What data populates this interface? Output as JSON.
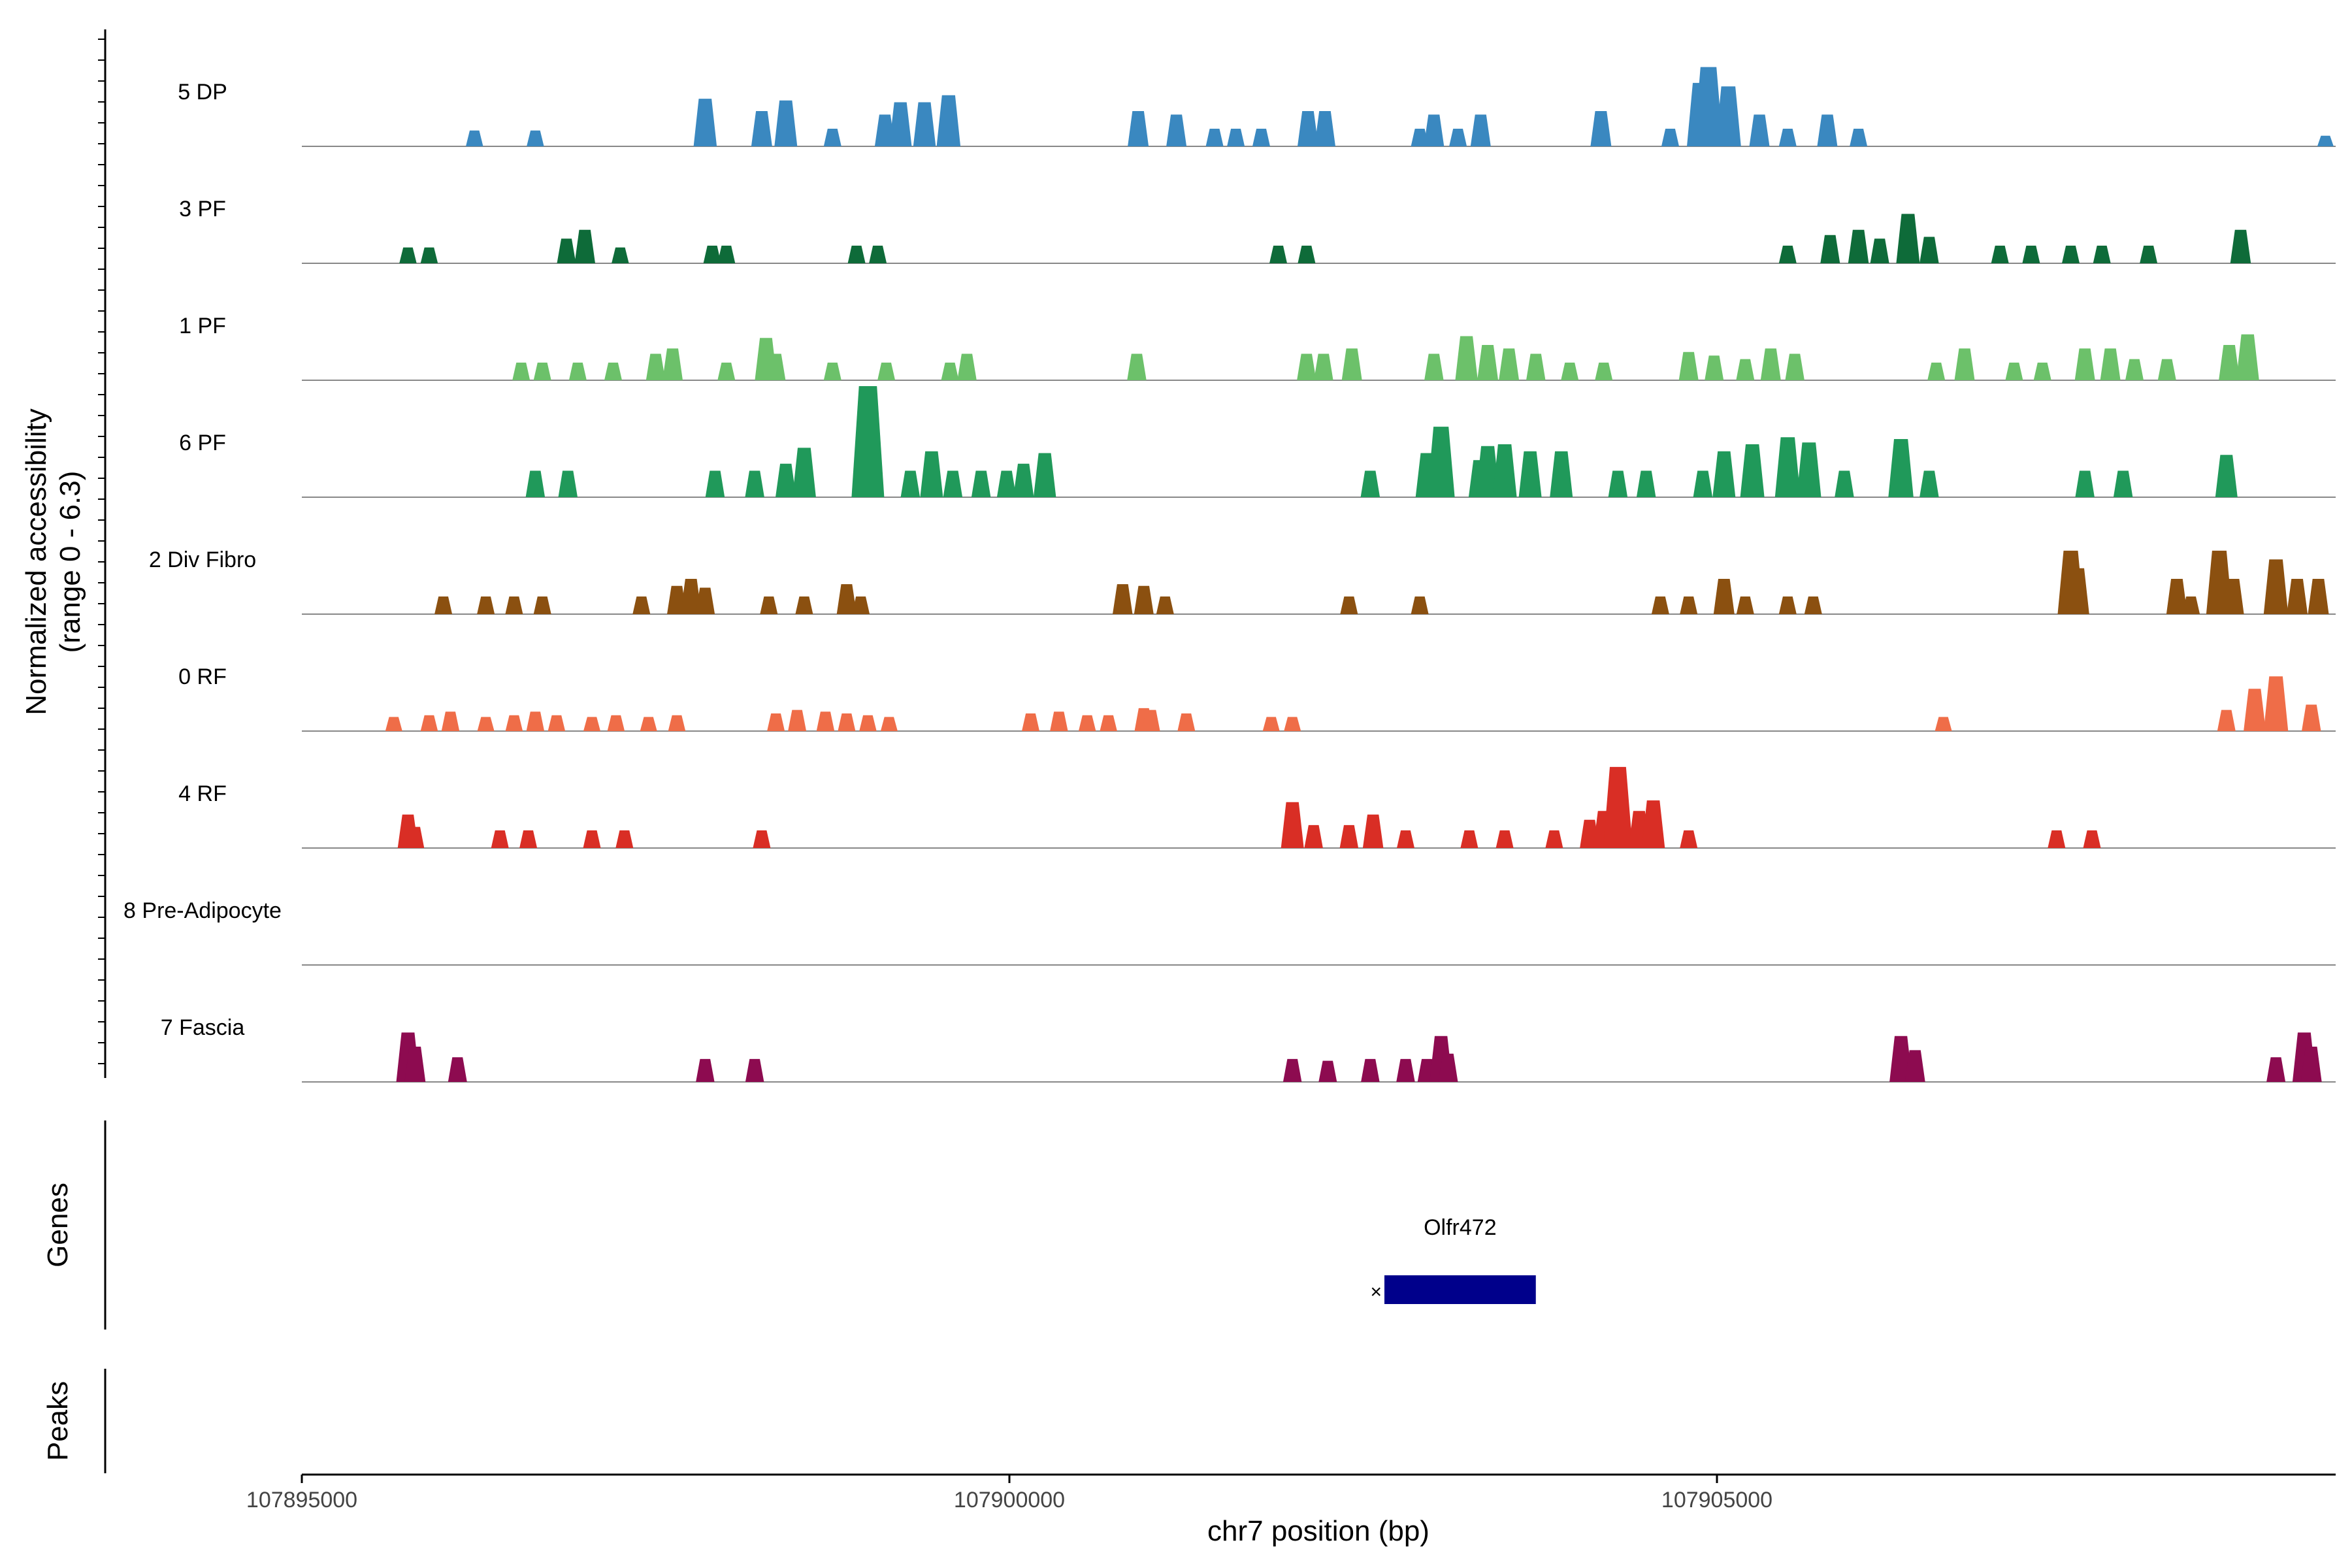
{
  "chart_data": {
    "type": "area",
    "title": "",
    "xlabel": "chr7 position (bp)",
    "ylabel_line1": "Normalized accessibility",
    "ylabel_line2": "(range 0 - 6.3)",
    "y_range": [
      0,
      6.3
    ],
    "x_range": [
      107895000,
      107909400
    ],
    "x_ticks": [
      107895000,
      107900000,
      107905000
    ],
    "x_tick_labels": [
      "107895000",
      "107900000",
      "107905000"
    ],
    "panel_labels": {
      "genes": "Genes",
      "peaks": "Peaks"
    },
    "genes": [
      {
        "name": "Olfr472",
        "start": 107902650,
        "end": 107903720,
        "strand": "-",
        "color": "#00008b"
      }
    ],
    "series": [
      {
        "name": "5 DP",
        "color": "#3a88c0",
        "peaks": [
          [
            107896220,
            0.9
          ],
          [
            107896650,
            0.9
          ],
          [
            107897850,
            2.7
          ],
          [
            107898250,
            2.0
          ],
          [
            107898420,
            2.6
          ],
          [
            107898750,
            1.0
          ],
          [
            107899120,
            1.8
          ],
          [
            107899230,
            2.5
          ],
          [
            107899400,
            2.5
          ],
          [
            107899570,
            2.9
          ],
          [
            107900910,
            2.0
          ],
          [
            107901180,
            1.8
          ],
          [
            107901450,
            1.0
          ],
          [
            107901600,
            1.0
          ],
          [
            107901780,
            1.0
          ],
          [
            107902110,
            2.0
          ],
          [
            107902230,
            2.0
          ],
          [
            107902900,
            1.0
          ],
          [
            107903000,
            1.8
          ],
          [
            107903170,
            1.0
          ],
          [
            107903330,
            1.8
          ],
          [
            107904180,
            2.0
          ],
          [
            107904670,
            1.0
          ],
          [
            107904880,
            3.6
          ],
          [
            107904940,
            4.5
          ],
          [
            107905080,
            3.4
          ],
          [
            107905300,
            1.8
          ],
          [
            107905500,
            1.0
          ],
          [
            107905780,
            1.8
          ],
          [
            107906000,
            1.0
          ],
          [
            107909300,
            0.6
          ]
        ]
      },
      {
        "name": "3 PF",
        "color": "#0e6b39",
        "peaks": [
          [
            107895750,
            0.9
          ],
          [
            107895900,
            0.9
          ],
          [
            107896870,
            1.4
          ],
          [
            107897000,
            1.9
          ],
          [
            107897250,
            0.9
          ],
          [
            107897900,
            1.0
          ],
          [
            107898000,
            1.0
          ],
          [
            107898920,
            1.0
          ],
          [
            107899070,
            1.0
          ],
          [
            107901900,
            1.0
          ],
          [
            107902100,
            1.0
          ],
          [
            107905500,
            1.0
          ],
          [
            107905800,
            1.6
          ],
          [
            107906000,
            1.9
          ],
          [
            107906150,
            1.4
          ],
          [
            107906350,
            2.8
          ],
          [
            107906500,
            1.5
          ],
          [
            107907000,
            1.0
          ],
          [
            107907220,
            1.0
          ],
          [
            107907500,
            1.0
          ],
          [
            107907720,
            1.0
          ],
          [
            107908050,
            1.0
          ],
          [
            107908700,
            1.9
          ]
        ]
      },
      {
        "name": "1 PF",
        "color": "#6cc16a",
        "peaks": [
          [
            107896550,
            1.0
          ],
          [
            107896700,
            1.0
          ],
          [
            107896950,
            1.0
          ],
          [
            107897200,
            1.0
          ],
          [
            107897500,
            1.5
          ],
          [
            107897620,
            1.8
          ],
          [
            107898000,
            1.0
          ],
          [
            107898280,
            2.4
          ],
          [
            107898350,
            1.5
          ],
          [
            107898750,
            1.0
          ],
          [
            107899130,
            1.0
          ],
          [
            107899580,
            1.0
          ],
          [
            107899700,
            1.5
          ],
          [
            107900900,
            1.5
          ],
          [
            107902100,
            1.5
          ],
          [
            107902220,
            1.5
          ],
          [
            107902420,
            1.8
          ],
          [
            107903000,
            1.5
          ],
          [
            107903230,
            2.5
          ],
          [
            107903380,
            2.0
          ],
          [
            107903530,
            1.8
          ],
          [
            107903720,
            1.5
          ],
          [
            107903960,
            1.0
          ],
          [
            107904200,
            1.0
          ],
          [
            107904800,
            1.6
          ],
          [
            107904980,
            1.4
          ],
          [
            107905200,
            1.2
          ],
          [
            107905380,
            1.8
          ],
          [
            107905550,
            1.5
          ],
          [
            107906550,
            1.0
          ],
          [
            107906750,
            1.8
          ],
          [
            107907100,
            1.0
          ],
          [
            107907300,
            1.0
          ],
          [
            107907600,
            1.8
          ],
          [
            107907780,
            1.8
          ],
          [
            107907950,
            1.2
          ],
          [
            107908180,
            1.2
          ],
          [
            107908620,
            2.0
          ],
          [
            107908750,
            2.6
          ]
        ]
      },
      {
        "name": "6 PF",
        "color": "#20995a",
        "peaks": [
          [
            107896650,
            1.5
          ],
          [
            107896880,
            1.5
          ],
          [
            107897920,
            1.5
          ],
          [
            107898200,
            1.5
          ],
          [
            107898420,
            1.9
          ],
          [
            107898550,
            2.8
          ],
          [
            107899000,
            6.3
          ],
          [
            107899300,
            1.5
          ],
          [
            107899450,
            2.6
          ],
          [
            107899600,
            1.5
          ],
          [
            107899800,
            1.5
          ],
          [
            107899980,
            1.5
          ],
          [
            107900100,
            1.9
          ],
          [
            107900250,
            2.5
          ],
          [
            107902550,
            1.5
          ],
          [
            107902950,
            2.5
          ],
          [
            107903050,
            4.0
          ],
          [
            107903320,
            2.1
          ],
          [
            107903380,
            2.9
          ],
          [
            107903500,
            3.0
          ],
          [
            107903680,
            2.6
          ],
          [
            107903900,
            2.6
          ],
          [
            107904300,
            1.5
          ],
          [
            107904500,
            1.5
          ],
          [
            107904900,
            1.5
          ],
          [
            107905050,
            2.6
          ],
          [
            107905250,
            3.0
          ],
          [
            107905500,
            3.4
          ],
          [
            107905650,
            3.1
          ],
          [
            107905900,
            1.5
          ],
          [
            107906300,
            3.3
          ],
          [
            107906500,
            1.5
          ],
          [
            107907600,
            1.5
          ],
          [
            107907870,
            1.5
          ],
          [
            107908600,
            2.4
          ]
        ]
      },
      {
        "name": "2 Div Fibro",
        "color": "#8b5010",
        "peaks": [
          [
            107896000,
            1.0
          ],
          [
            107896300,
            1.0
          ],
          [
            107896500,
            1.0
          ],
          [
            107896700,
            1.0
          ],
          [
            107897400,
            1.0
          ],
          [
            107897650,
            1.6
          ],
          [
            107897750,
            2.0
          ],
          [
            107897850,
            1.5
          ],
          [
            107898300,
            1.0
          ],
          [
            107898550,
            1.0
          ],
          [
            107898850,
            1.7
          ],
          [
            107898950,
            1.0
          ],
          [
            107900800,
            1.7
          ],
          [
            107900950,
            1.6
          ],
          [
            107901100,
            1.0
          ],
          [
            107902400,
            1.0
          ],
          [
            107902900,
            1.0
          ],
          [
            107904600,
            1.0
          ],
          [
            107904800,
            1.0
          ],
          [
            107905050,
            2.0
          ],
          [
            107905200,
            1.0
          ],
          [
            107905500,
            1.0
          ],
          [
            107905680,
            1.0
          ],
          [
            107907500,
            3.6
          ],
          [
            107907550,
            2.6
          ],
          [
            107908250,
            2.0
          ],
          [
            107908350,
            1.0
          ],
          [
            107908550,
            3.6
          ],
          [
            107908650,
            2.0
          ],
          [
            107908950,
            3.1
          ],
          [
            107909100,
            2.0
          ],
          [
            107909250,
            2.0
          ]
        ]
      },
      {
        "name": "0 RF",
        "color": "#ef6d48",
        "peaks": [
          [
            107895650,
            0.8
          ],
          [
            107895900,
            0.9
          ],
          [
            107896050,
            1.1
          ],
          [
            107896300,
            0.8
          ],
          [
            107896500,
            0.9
          ],
          [
            107896650,
            1.1
          ],
          [
            107896800,
            0.9
          ],
          [
            107897050,
            0.8
          ],
          [
            107897220,
            0.9
          ],
          [
            107897450,
            0.8
          ],
          [
            107897650,
            0.9
          ],
          [
            107898350,
            1.0
          ],
          [
            107898500,
            1.2
          ],
          [
            107898700,
            1.1
          ],
          [
            107898850,
            1.0
          ],
          [
            107899000,
            0.9
          ],
          [
            107899150,
            0.8
          ],
          [
            107900150,
            1.0
          ],
          [
            107900350,
            1.1
          ],
          [
            107900550,
            0.9
          ],
          [
            107900700,
            0.9
          ],
          [
            107900950,
            1.3
          ],
          [
            107901000,
            1.2
          ],
          [
            107901250,
            1.0
          ],
          [
            107901850,
            0.8
          ],
          [
            107902000,
            0.8
          ],
          [
            107906600,
            0.8
          ],
          [
            107908600,
            1.2
          ],
          [
            107908800,
            2.4
          ],
          [
            107908950,
            3.1
          ],
          [
            107909200,
            1.5
          ]
        ]
      },
      {
        "name": "4 RF",
        "color": "#d92e25",
        "peaks": [
          [
            107895750,
            1.9
          ],
          [
            107895800,
            1.2
          ],
          [
            107896400,
            1.0
          ],
          [
            107896600,
            1.0
          ],
          [
            107897050,
            1.0
          ],
          [
            107897280,
            1.0
          ],
          [
            107898250,
            1.0
          ],
          [
            107902000,
            2.6
          ],
          [
            107902150,
            1.3
          ],
          [
            107902400,
            1.3
          ],
          [
            107902570,
            1.9
          ],
          [
            107902800,
            1.0
          ],
          [
            107903250,
            1.0
          ],
          [
            107903500,
            1.0
          ],
          [
            107903850,
            1.0
          ],
          [
            107904100,
            1.6
          ],
          [
            107904200,
            2.1
          ],
          [
            107904300,
            4.6
          ],
          [
            107904450,
            2.1
          ],
          [
            107904550,
            2.7
          ],
          [
            107904800,
            1.0
          ],
          [
            107907400,
            1.0
          ],
          [
            107907650,
            1.0
          ]
        ]
      },
      {
        "name": "8 Pre-Adipocyte",
        "color": "#555555",
        "peaks": []
      },
      {
        "name": "7 Fascia",
        "color": "#8d0b50",
        "peaks": [
          [
            107895750,
            2.8
          ],
          [
            107895800,
            2.0
          ],
          [
            107896100,
            1.4
          ],
          [
            107897850,
            1.3
          ],
          [
            107898200,
            1.3
          ],
          [
            107902000,
            1.3
          ],
          [
            107902250,
            1.2
          ],
          [
            107902550,
            1.3
          ],
          [
            107902800,
            1.3
          ],
          [
            107902950,
            1.3
          ],
          [
            107903050,
            2.6
          ],
          [
            107903100,
            1.6
          ],
          [
            107906300,
            2.6
          ],
          [
            107906400,
            1.8
          ],
          [
            107908950,
            1.4
          ],
          [
            107909150,
            2.8
          ],
          [
            107909200,
            2.0
          ]
        ]
      }
    ]
  }
}
